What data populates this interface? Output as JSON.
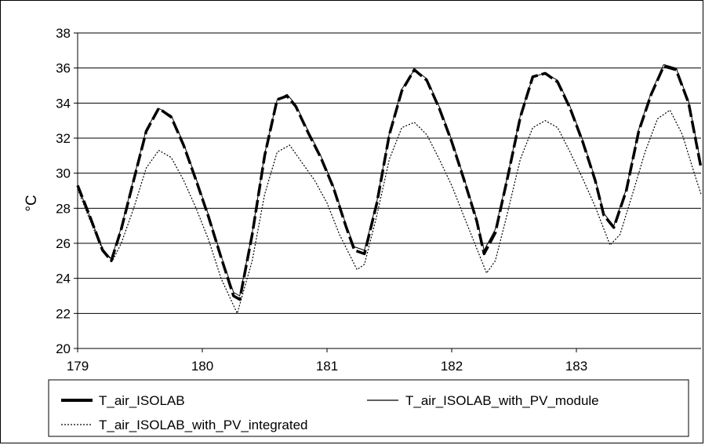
{
  "chart_data": {
    "type": "line",
    "title": "",
    "xlabel": "",
    "ylabel": "°C",
    "xlim": [
      179,
      184
    ],
    "ylim": [
      20,
      38
    ],
    "x_ticks": [
      179,
      180,
      181,
      182,
      183
    ],
    "y_ticks": [
      20,
      22,
      24,
      26,
      28,
      30,
      32,
      34,
      36,
      38
    ],
    "grid": "horizontal",
    "legend_position": "bottom",
    "series": [
      {
        "name": "T_air_ISOLAB",
        "style": "dashed-thick",
        "color": "#000000",
        "x": [
          179.0,
          179.1,
          179.2,
          179.27,
          179.35,
          179.45,
          179.55,
          179.65,
          179.75,
          179.85,
          179.95,
          180.05,
          180.15,
          180.25,
          180.3,
          180.4,
          180.5,
          180.6,
          180.68,
          180.75,
          180.85,
          180.95,
          181.05,
          181.15,
          181.22,
          181.3,
          181.4,
          181.5,
          181.6,
          181.7,
          181.8,
          181.9,
          182.0,
          182.1,
          182.2,
          182.26,
          182.35,
          182.45,
          182.55,
          182.65,
          182.75,
          182.85,
          182.95,
          183.05,
          183.15,
          183.22,
          183.3,
          183.4,
          183.5,
          183.6,
          183.7,
          183.8,
          183.9,
          184.0
        ],
        "values": [
          29.3,
          27.5,
          25.6,
          25.0,
          26.8,
          29.6,
          32.4,
          33.7,
          33.2,
          31.6,
          29.6,
          27.5,
          25.2,
          23.0,
          22.8,
          26.5,
          31.0,
          34.2,
          34.4,
          33.8,
          32.3,
          30.9,
          29.2,
          27.0,
          25.6,
          25.4,
          28.3,
          32.2,
          34.7,
          35.9,
          35.3,
          33.7,
          31.8,
          29.6,
          27.3,
          25.4,
          26.6,
          29.8,
          33.2,
          35.5,
          35.7,
          35.2,
          33.7,
          31.8,
          29.6,
          27.6,
          26.9,
          29.0,
          32.4,
          34.5,
          36.1,
          35.9,
          34.0,
          30.3
        ]
      },
      {
        "name": "T_air_ISOLAB_with_PV_module",
        "style": "solid-thin",
        "color": "#000000",
        "x": [
          179.0,
          179.1,
          179.2,
          179.27,
          179.35,
          179.45,
          179.55,
          179.65,
          179.75,
          179.85,
          179.95,
          180.05,
          180.15,
          180.25,
          180.3,
          180.4,
          180.5,
          180.6,
          180.68,
          180.75,
          180.85,
          180.95,
          181.05,
          181.15,
          181.22,
          181.3,
          181.4,
          181.5,
          181.6,
          181.7,
          181.8,
          181.9,
          182.0,
          182.1,
          182.2,
          182.26,
          182.35,
          182.45,
          182.55,
          182.65,
          182.75,
          182.85,
          182.95,
          183.05,
          183.15,
          183.22,
          183.3,
          183.4,
          183.5,
          183.6,
          183.7,
          183.8,
          183.9,
          184.0
        ],
        "values": [
          29.3,
          27.5,
          25.7,
          25.1,
          26.9,
          29.7,
          32.5,
          33.7,
          33.3,
          31.7,
          29.7,
          27.6,
          25.3,
          23.2,
          23.0,
          26.6,
          31.1,
          34.2,
          34.5,
          33.9,
          32.4,
          31.0,
          29.3,
          27.1,
          25.8,
          25.6,
          28.4,
          32.3,
          34.8,
          35.9,
          35.4,
          33.8,
          31.9,
          29.7,
          27.4,
          25.6,
          26.8,
          29.9,
          33.3,
          35.5,
          35.7,
          35.3,
          33.8,
          31.9,
          29.7,
          27.7,
          27.0,
          29.1,
          32.5,
          34.6,
          36.2,
          36.0,
          34.1,
          30.5
        ]
      },
      {
        "name": "T_air_ISOLAB_with_PV_integrated",
        "style": "dotted",
        "color": "#000000",
        "x": [
          179.0,
          179.1,
          179.2,
          179.28,
          179.35,
          179.45,
          179.55,
          179.65,
          179.75,
          179.85,
          179.95,
          180.05,
          180.15,
          180.28,
          180.4,
          180.5,
          180.6,
          180.7,
          180.8,
          180.9,
          181.0,
          181.1,
          181.24,
          181.3,
          181.4,
          181.5,
          181.6,
          181.7,
          181.8,
          181.9,
          182.0,
          182.1,
          182.28,
          182.35,
          182.45,
          182.55,
          182.65,
          182.75,
          182.85,
          182.95,
          183.05,
          183.15,
          183.27,
          183.35,
          183.45,
          183.55,
          183.65,
          183.75,
          183.85,
          183.95,
          184.0
        ],
        "values": [
          29.1,
          27.3,
          25.6,
          25.0,
          26.0,
          28.0,
          30.3,
          31.3,
          30.9,
          29.6,
          28.0,
          26.2,
          24.0,
          22.0,
          25.0,
          28.8,
          31.2,
          31.6,
          30.6,
          29.6,
          28.3,
          26.5,
          24.5,
          24.8,
          27.6,
          30.8,
          32.6,
          32.9,
          32.2,
          30.8,
          29.3,
          27.5,
          24.3,
          25.0,
          27.8,
          30.8,
          32.6,
          33.0,
          32.6,
          31.2,
          29.7,
          28.1,
          25.9,
          26.5,
          28.8,
          31.2,
          33.1,
          33.6,
          32.2,
          29.9,
          28.8
        ]
      }
    ]
  }
}
